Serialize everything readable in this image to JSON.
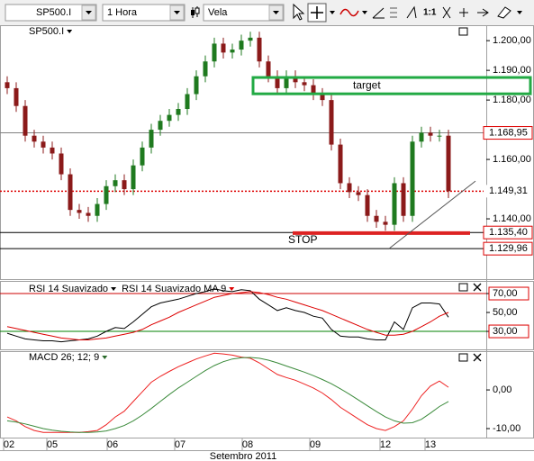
{
  "toolbar": {
    "symbol": "SP500.I",
    "period": "1 Hora",
    "chart_style": "Vela",
    "zoom": "1:1"
  },
  "chart_data": [
    {
      "type": "candlestick",
      "name": "SP500.I",
      "up_color": "#1f7a1f",
      "down_color": "#8b1a1a",
      "xlim": [
        -0.8,
        53.2
      ],
      "ylim": [
        1119.7,
        1205.2
      ],
      "yticks": [
        {
          "value": 1140,
          "label": "1.140,00"
        },
        {
          "value": 1160,
          "label": "1.160,00"
        },
        {
          "value": 1180,
          "label": "1.180,00"
        },
        {
          "value": 1190,
          "label": "1.190,00"
        },
        {
          "value": 1200,
          "label": "1.200,00"
        }
      ],
      "open": [
        1186,
        1184,
        1178,
        1168,
        1166,
        1164,
        1162,
        1155,
        1143,
        1142,
        1141,
        1145,
        1151,
        1153,
        1150,
        1158,
        1164,
        1170,
        1173,
        1175,
        1177,
        1182,
        1188,
        1193,
        1199,
        1196,
        1197,
        1200,
        1201,
        1193,
        1188,
        1184,
        1188,
        1186,
        1185,
        1182,
        1180,
        1165,
        1152,
        1149,
        1148,
        1141,
        1139,
        1138,
        1152,
        1141,
        1166,
        1169,
        1168,
        1168
      ],
      "high": [
        1188,
        1186,
        1180,
        1170,
        1168,
        1166,
        1164,
        1157,
        1145,
        1144,
        1147,
        1153,
        1155,
        1155,
        1160,
        1166,
        1172,
        1175,
        1177,
        1179,
        1184,
        1190,
        1195,
        1201,
        1201,
        1199,
        1202,
        1203,
        1203,
        1195,
        1190,
        1190,
        1190,
        1188,
        1187,
        1184,
        1182,
        1167,
        1154,
        1151,
        1150,
        1143,
        1141,
        1154,
        1154,
        1168,
        1171,
        1171,
        1170,
        1170
      ],
      "low": [
        1182,
        1176,
        1166,
        1164,
        1162,
        1160,
        1153,
        1141,
        1140,
        1139,
        1139,
        1143,
        1149,
        1148,
        1148,
        1156,
        1162,
        1168,
        1171,
        1173,
        1175,
        1180,
        1186,
        1191,
        1194,
        1194,
        1195,
        1198,
        1191,
        1186,
        1182,
        1182,
        1184,
        1183,
        1180,
        1178,
        1163,
        1150,
        1147,
        1146,
        1139,
        1137,
        1136,
        1136,
        1139,
        1139,
        1164,
        1166,
        1166,
        1147
      ],
      "close": [
        1184,
        1178,
        1168,
        1166,
        1164,
        1162,
        1155,
        1143,
        1142,
        1141,
        1145,
        1151,
        1153,
        1150,
        1158,
        1164,
        1170,
        1173,
        1175,
        1177,
        1182,
        1188,
        1193,
        1199,
        1196,
        1197,
        1200,
        1201,
        1193,
        1188,
        1184,
        1188,
        1186,
        1185,
        1182,
        1180,
        1165,
        1152,
        1149,
        1148,
        1141,
        1139,
        1138,
        1152,
        1141,
        1166,
        1169,
        1168,
        1168,
        1149.31
      ],
      "levels": [
        {
          "value": 1168.95,
          "label": "1.168,95",
          "color": "#808080",
          "style": "solid",
          "boxed": true
        },
        {
          "value": 1149.31,
          "label": "1.149,31",
          "color": "#dd0000",
          "style": "dotted",
          "boxed": false
        },
        {
          "value": 1135.4,
          "label": "1.135,40",
          "color": "#000000",
          "style": "solid",
          "boxed": true
        },
        {
          "value": 1129.96,
          "label": "1.129,96",
          "color": "#000000",
          "style": "solid",
          "boxed": true
        }
      ],
      "target": {
        "label": "target",
        "top": 1187.6,
        "bottom": 1182.1,
        "color": "#22aa44"
      },
      "stop": {
        "label": "STOP",
        "value": 1135.2,
        "color": "#dd2222"
      },
      "trendline": {
        "start": {
          "x": 42.4,
          "y": 1129.96
        },
        "end": {
          "x": 52,
          "y": 1152.7
        }
      }
    },
    {
      "type": "line",
      "xlim": [
        -0.8,
        53.2
      ],
      "ylim": [
        11,
        82.4
      ],
      "yticks": [
        {
          "value": 30,
          "label": "30,00"
        },
        {
          "value": 50,
          "label": "50,00"
        },
        {
          "value": 70,
          "label": "70,00"
        }
      ],
      "boxed_ticks": [
        0,
        2
      ],
      "reference_lines": [
        {
          "value": 70,
          "color": "#cc0000"
        },
        {
          "value": 30,
          "color": "#008000"
        }
      ],
      "series": [
        {
          "name": "RSI 14 Suavizado",
          "color": "#000000",
          "values": [
            28,
            25,
            22,
            21,
            20,
            20,
            19,
            20,
            21,
            22,
            25,
            30,
            34,
            33,
            40,
            48,
            56,
            60,
            62,
            64,
            67,
            70,
            72,
            75,
            73,
            72,
            74,
            73,
            64,
            58,
            52,
            55,
            52,
            50,
            46,
            44,
            32,
            25,
            24,
            24,
            22,
            21,
            21,
            40,
            32,
            55,
            60,
            60,
            59,
            45
          ]
        },
        {
          "name": "RSI 14 Suavizado MA 9",
          "color": "#dd0000",
          "values": [
            35,
            33,
            31,
            29,
            27,
            25,
            23,
            22,
            21,
            21,
            22,
            23,
            25,
            27,
            29,
            32,
            37,
            41,
            45,
            50,
            54,
            58,
            62,
            66,
            68,
            70,
            71,
            72,
            71,
            69,
            66,
            64,
            61,
            58,
            55,
            52,
            48,
            44,
            40,
            36,
            32,
            29,
            26,
            26,
            27,
            30,
            35,
            40,
            46,
            50
          ]
        }
      ]
    },
    {
      "type": "line",
      "legend": "MACD 26; 12; 9",
      "xlim": [
        -0.8,
        53.2
      ],
      "ylim": [
        -12.1,
        9.8
      ],
      "yticks": [
        {
          "value": -10,
          "label": "-10,00"
        },
        {
          "value": 0,
          "label": "0,00"
        }
      ],
      "series": [
        {
          "color": "#ee2222",
          "values": [
            -7,
            -8,
            -9.5,
            -10.5,
            -11,
            -11,
            -11,
            -11,
            -11,
            -10.8,
            -10.5,
            -9,
            -7,
            -5.5,
            -3,
            -0.5,
            2,
            3.5,
            4.8,
            6,
            7,
            8,
            8.8,
            9.5,
            9.3,
            9,
            8.5,
            8.2,
            7,
            5.5,
            4,
            3.2,
            2.5,
            1.5,
            0.5,
            -0.8,
            -2.5,
            -4.5,
            -6,
            -7.5,
            -9,
            -10,
            -10.5,
            -9.5,
            -8,
            -5,
            -1.5,
            1,
            2.3,
            0.7
          ]
        },
        {
          "color": "#3a8a3a",
          "values": [
            -8,
            -8.3,
            -8.8,
            -9.4,
            -10,
            -10.4,
            -10.7,
            -10.9,
            -11,
            -11,
            -10.9,
            -10.6,
            -10,
            -9.2,
            -8,
            -6.5,
            -4.8,
            -3,
            -1.2,
            0.5,
            2,
            3.5,
            5,
            6.3,
            7.3,
            8,
            8.3,
            8.4,
            8.2,
            7.7,
            7,
            6.2,
            5.4,
            4.6,
            3.7,
            2.7,
            1.6,
            0.3,
            -1.1,
            -2.6,
            -4.1,
            -5.6,
            -7,
            -8,
            -8.6,
            -8.5,
            -7.6,
            -6,
            -4.3,
            -3
          ]
        }
      ],
      "xticks": [
        {
          "value": 0.2,
          "label": "02"
        },
        {
          "value": 5,
          "label": "05"
        },
        {
          "value": 11.7,
          "label": "06"
        },
        {
          "value": 19.2,
          "label": "07"
        },
        {
          "value": 26.7,
          "label": "08"
        },
        {
          "value": 34.2,
          "label": "09"
        },
        {
          "value": 42,
          "label": "12"
        },
        {
          "value": 47,
          "label": "13"
        }
      ],
      "xlabel": "Setembro 2011"
    }
  ]
}
